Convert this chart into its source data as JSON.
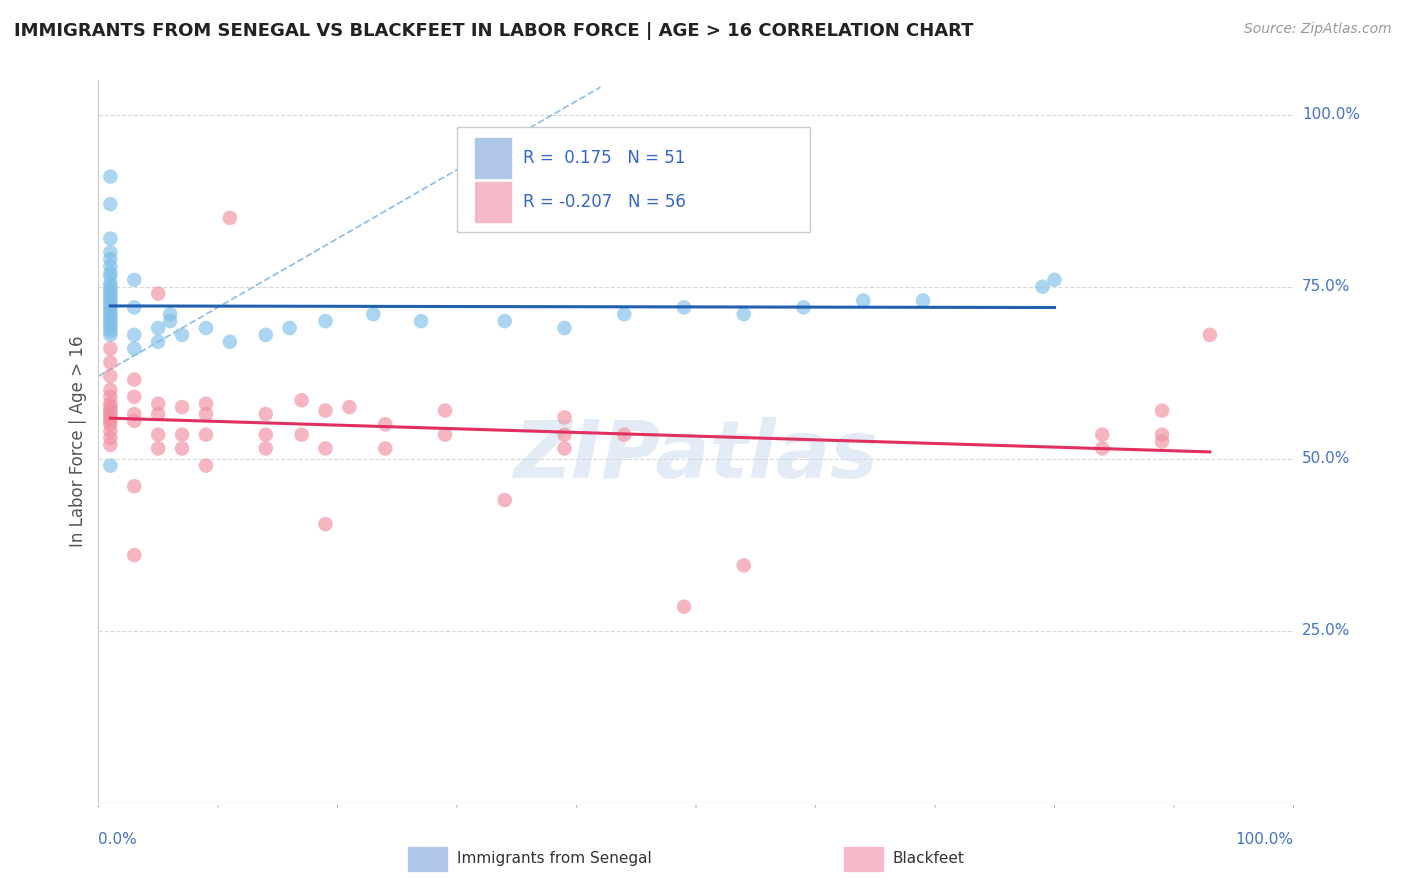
{
  "title": "IMMIGRANTS FROM SENEGAL VS BLACKFEET IN LABOR FORCE | AGE > 16 CORRELATION CHART",
  "source_text": "Source: ZipAtlas.com",
  "ylabel": "In Labor Force | Age > 16",
  "ytick_values": [
    0.0,
    0.25,
    0.5,
    0.75,
    1.0
  ],
  "ytick_labels": [
    "",
    "25.0%",
    "50.0%",
    "75.0%",
    "100.0%"
  ],
  "xlim": [
    0.0,
    1.0
  ],
  "ylim": [
    0.0,
    1.05
  ],
  "senegal_scatter": [
    [
      0.01,
      0.91
    ],
    [
      0.01,
      0.87
    ],
    [
      0.01,
      0.82
    ],
    [
      0.01,
      0.8
    ],
    [
      0.01,
      0.79
    ],
    [
      0.01,
      0.78
    ],
    [
      0.01,
      0.77
    ],
    [
      0.01,
      0.765
    ],
    [
      0.01,
      0.755
    ],
    [
      0.01,
      0.75
    ],
    [
      0.01,
      0.745
    ],
    [
      0.01,
      0.74
    ],
    [
      0.01,
      0.735
    ],
    [
      0.01,
      0.73
    ],
    [
      0.01,
      0.725
    ],
    [
      0.01,
      0.72
    ],
    [
      0.01,
      0.715
    ],
    [
      0.01,
      0.71
    ],
    [
      0.01,
      0.705
    ],
    [
      0.01,
      0.7
    ],
    [
      0.01,
      0.695
    ],
    [
      0.01,
      0.69
    ],
    [
      0.01,
      0.685
    ],
    [
      0.01,
      0.68
    ],
    [
      0.03,
      0.76
    ],
    [
      0.03,
      0.72
    ],
    [
      0.03,
      0.68
    ],
    [
      0.03,
      0.66
    ],
    [
      0.05,
      0.69
    ],
    [
      0.05,
      0.67
    ],
    [
      0.06,
      0.71
    ],
    [
      0.06,
      0.7
    ],
    [
      0.07,
      0.68
    ],
    [
      0.09,
      0.69
    ],
    [
      0.11,
      0.67
    ],
    [
      0.14,
      0.68
    ],
    [
      0.16,
      0.69
    ],
    [
      0.19,
      0.7
    ],
    [
      0.23,
      0.71
    ],
    [
      0.01,
      0.49
    ],
    [
      0.27,
      0.7
    ],
    [
      0.34,
      0.7
    ],
    [
      0.39,
      0.69
    ],
    [
      0.44,
      0.71
    ],
    [
      0.49,
      0.72
    ],
    [
      0.54,
      0.71
    ],
    [
      0.59,
      0.72
    ],
    [
      0.64,
      0.73
    ],
    [
      0.69,
      0.73
    ],
    [
      0.79,
      0.75
    ],
    [
      0.8,
      0.76
    ]
  ],
  "blackfeet_scatter": [
    [
      0.01,
      0.66
    ],
    [
      0.01,
      0.64
    ],
    [
      0.01,
      0.62
    ],
    [
      0.01,
      0.6
    ],
    [
      0.01,
      0.59
    ],
    [
      0.01,
      0.58
    ],
    [
      0.01,
      0.575
    ],
    [
      0.01,
      0.57
    ],
    [
      0.01,
      0.565
    ],
    [
      0.01,
      0.56
    ],
    [
      0.01,
      0.555
    ],
    [
      0.01,
      0.55
    ],
    [
      0.01,
      0.54
    ],
    [
      0.01,
      0.53
    ],
    [
      0.01,
      0.52
    ],
    [
      0.03,
      0.615
    ],
    [
      0.03,
      0.59
    ],
    [
      0.03,
      0.565
    ],
    [
      0.03,
      0.555
    ],
    [
      0.03,
      0.46
    ],
    [
      0.03,
      0.36
    ],
    [
      0.05,
      0.74
    ],
    [
      0.05,
      0.58
    ],
    [
      0.05,
      0.565
    ],
    [
      0.05,
      0.535
    ],
    [
      0.05,
      0.515
    ],
    [
      0.07,
      0.575
    ],
    [
      0.07,
      0.535
    ],
    [
      0.07,
      0.515
    ],
    [
      0.09,
      0.58
    ],
    [
      0.09,
      0.565
    ],
    [
      0.09,
      0.535
    ],
    [
      0.09,
      0.49
    ],
    [
      0.11,
      0.85
    ],
    [
      0.14,
      0.565
    ],
    [
      0.14,
      0.535
    ],
    [
      0.14,
      0.515
    ],
    [
      0.17,
      0.585
    ],
    [
      0.17,
      0.535
    ],
    [
      0.19,
      0.57
    ],
    [
      0.19,
      0.515
    ],
    [
      0.21,
      0.575
    ],
    [
      0.24,
      0.55
    ],
    [
      0.24,
      0.515
    ],
    [
      0.29,
      0.57
    ],
    [
      0.29,
      0.535
    ],
    [
      0.34,
      0.44
    ],
    [
      0.39,
      0.56
    ],
    [
      0.39,
      0.535
    ],
    [
      0.39,
      0.515
    ],
    [
      0.44,
      0.535
    ],
    [
      0.49,
      0.285
    ],
    [
      0.54,
      0.345
    ],
    [
      0.19,
      0.405
    ],
    [
      0.84,
      0.535
    ],
    [
      0.84,
      0.515
    ],
    [
      0.89,
      0.57
    ],
    [
      0.89,
      0.535
    ],
    [
      0.89,
      0.525
    ],
    [
      0.93,
      0.68
    ]
  ],
  "senegal_color": "#7fbfe8",
  "blackfeet_color": "#f090a0",
  "senegal_trend_color": "#2060b0",
  "blackfeet_trend_color": "#e03060",
  "dashed_line_color": "#90c0e8",
  "watermark": "ZIPatlas",
  "background_color": "#ffffff",
  "grid_color": "#d8d8d8"
}
